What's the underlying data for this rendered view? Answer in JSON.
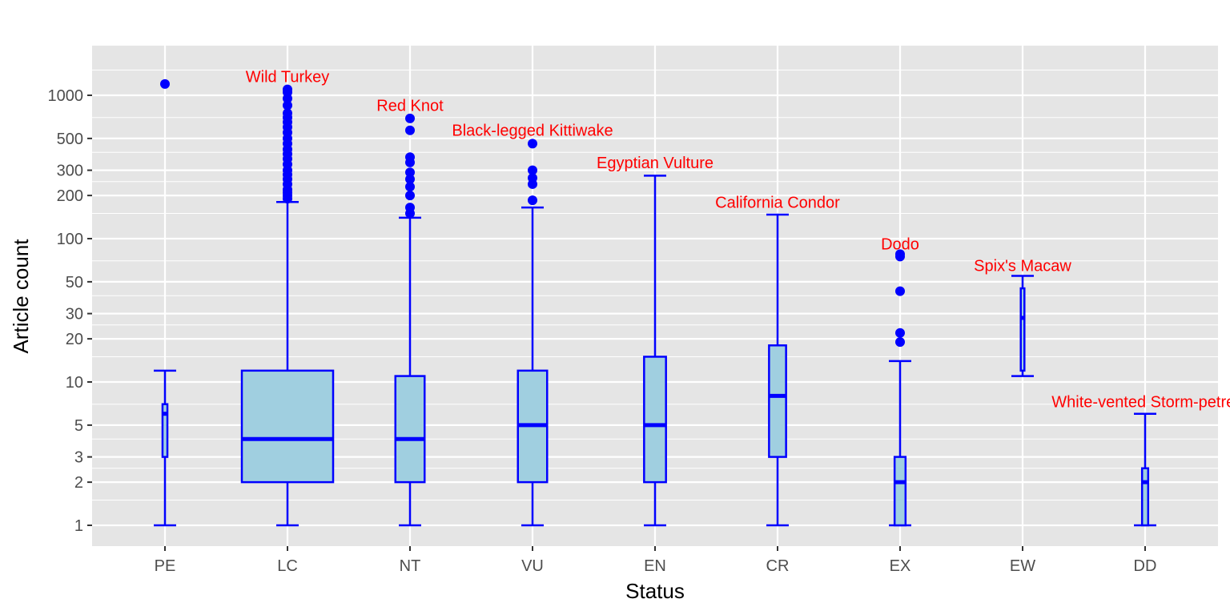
{
  "chart_data": {
    "type": "boxplot",
    "title": "",
    "xlabel": "Status",
    "ylabel": "Article count",
    "y_scale": "log10",
    "ylim": [
      0.8,
      2000
    ],
    "y_ticks": [
      1,
      2,
      3,
      5,
      10,
      20,
      30,
      50,
      100,
      200,
      300,
      500,
      1000
    ],
    "y_tick_labels": [
      "1",
      "2",
      "3",
      "5",
      "10",
      "20",
      "30",
      "50",
      "100",
      "200",
      "300",
      "500",
      "1000"
    ],
    "grid": true,
    "legend": "none",
    "colors": {
      "panel_background": "#e5e5e5",
      "grid": "#ffffff",
      "box_fill": "#a0cfe0",
      "box_line": "#0000ff",
      "outlier": "#0000ff",
      "annotation": "#ff0000"
    },
    "categories": [
      "PE",
      "LC",
      "NT",
      "VU",
      "EN",
      "CR",
      "EX",
      "EW",
      "DD"
    ],
    "boxes": [
      {
        "category": "PE",
        "lower_whisker": 1,
        "q1": 3,
        "median": 6,
        "q3": 7,
        "upper_whisker": 12,
        "outliers": [
          1200
        ],
        "relative_width": 0.04
      },
      {
        "category": "LC",
        "lower_whisker": 1,
        "q1": 2,
        "median": 4,
        "q3": 12,
        "upper_whisker": 180,
        "outliers": [
          190,
          200,
          210,
          220,
          240,
          260,
          280,
          300,
          330,
          360,
          390,
          420,
          460,
          500,
          550,
          600,
          650,
          700,
          750,
          850,
          950,
          1050,
          1100
        ],
        "relative_width": 0.75
      },
      {
        "category": "NT",
        "lower_whisker": 1,
        "q1": 2,
        "median": 4,
        "q3": 11,
        "upper_whisker": 140,
        "outliers": [
          150,
          165,
          200,
          230,
          260,
          290,
          340,
          370,
          570,
          690
        ],
        "relative_width": 0.24
      },
      {
        "category": "VU",
        "lower_whisker": 1,
        "q1": 2,
        "median": 5,
        "q3": 12,
        "upper_whisker": 165,
        "outliers": [
          185,
          240,
          265,
          300,
          460
        ],
        "relative_width": 0.24
      },
      {
        "category": "EN",
        "lower_whisker": 1,
        "q1": 2,
        "median": 5,
        "q3": 15,
        "upper_whisker": 275,
        "outliers": [],
        "relative_width": 0.18
      },
      {
        "category": "CR",
        "lower_whisker": 1,
        "q1": 3,
        "median": 8,
        "q3": 18,
        "upper_whisker": 147,
        "outliers": [],
        "relative_width": 0.14
      },
      {
        "category": "EX",
        "lower_whisker": 1,
        "q1": 1,
        "median": 2,
        "q3": 3,
        "upper_whisker": 14,
        "outliers": [
          19,
          22,
          43,
          75,
          78
        ],
        "relative_width": 0.09
      },
      {
        "category": "EW",
        "lower_whisker": 11,
        "q1": 12,
        "median": 28,
        "q3": 45,
        "upper_whisker": 55,
        "outliers": [],
        "relative_width": 0.03
      },
      {
        "category": "DD",
        "lower_whisker": 1,
        "q1": 1,
        "median": 2,
        "q3": 2.5,
        "upper_whisker": 6,
        "outliers": [],
        "relative_width": 0.05
      }
    ],
    "annotations": [
      {
        "category": "LC",
        "text": "Wild Turkey",
        "y": 1350
      },
      {
        "category": "NT",
        "text": "Red Knot",
        "y": 850
      },
      {
        "category": "VU",
        "text": "Black-legged Kittiwake",
        "y": 570
      },
      {
        "category": "EN",
        "text": "Egyptian Vulture",
        "y": 340
      },
      {
        "category": "CR",
        "text": "California Condor",
        "y": 180
      },
      {
        "category": "EX",
        "text": "Dodo",
        "y": 92
      },
      {
        "category": "EW",
        "text": "Spix's Macaw",
        "y": 65
      },
      {
        "category": "DD",
        "text": "White-vented Storm-petrel",
        "y": 7.3
      }
    ]
  }
}
